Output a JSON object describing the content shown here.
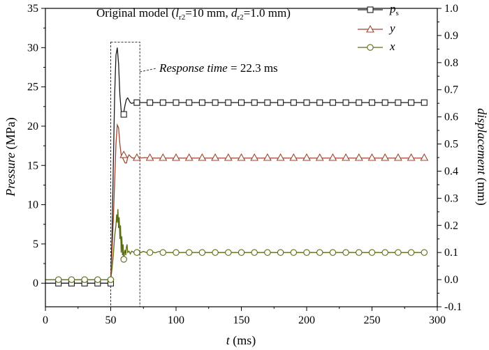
{
  "chart_data": {
    "type": "line",
    "title": {
      "main": "Original model (",
      "l": "l",
      "l_sub": "r2",
      "mid": "=10 mm, ",
      "d": "d",
      "d_sub": "r2",
      "end": "=1.0 mm)"
    },
    "x_axis": {
      "label_var": "t",
      "label_unit": " (ms)",
      "range": [
        0,
        300
      ],
      "ticks": [
        0,
        50,
        100,
        150,
        200,
        250,
        300
      ]
    },
    "y_axis_left": {
      "label_var": "Pressure",
      "label_unit": " (MPa)",
      "range": [
        -3,
        35
      ],
      "ticks": [
        0,
        5,
        10,
        15,
        20,
        25,
        30,
        35
      ]
    },
    "y_axis_right": {
      "label_var": "displacement",
      "label_unit": " (mm)",
      "range": [
        -0.1,
        1.0
      ],
      "ticks": [
        "-0.1",
        "0.0",
        "0.1",
        "0.2",
        "0.3",
        "0.4",
        "0.5",
        "0.6",
        "0.7",
        "0.8",
        "0.9",
        "1.0"
      ]
    },
    "annotation": {
      "var": "Response time",
      "rest": " = 22.3 ms",
      "box_x": [
        50,
        72.3
      ],
      "box_y": [
        -3,
        30.7
      ]
    },
    "legend": [
      {
        "var": "p",
        "sub": "s",
        "marker": "square",
        "color": "#1a1a1a"
      },
      {
        "var": "y",
        "sub": "",
        "marker": "triangle",
        "color": "#a0452f"
      },
      {
        "var": "x",
        "sub": "",
        "marker": "circle",
        "color": "#5a6b12"
      }
    ],
    "series": [
      {
        "name": "ps",
        "axis": "left",
        "color": "#1a1a1a",
        "marker": "square",
        "points": [
          [
            0,
            0
          ],
          [
            49,
            0
          ],
          [
            50,
            0.2
          ],
          [
            51,
            6
          ],
          [
            52,
            15
          ],
          [
            53,
            24
          ],
          [
            54,
            29
          ],
          [
            55,
            30
          ],
          [
            56,
            28
          ],
          [
            57,
            24
          ],
          [
            58,
            22
          ],
          [
            59,
            21.5
          ],
          [
            60,
            21.8
          ],
          [
            61,
            22.7
          ],
          [
            62,
            23.4
          ],
          [
            63,
            23.6
          ],
          [
            64,
            23.3
          ],
          [
            65,
            23.0
          ],
          [
            66,
            22.9
          ],
          [
            68,
            23.0
          ],
          [
            70,
            23.0
          ],
          [
            290,
            23.0
          ]
        ],
        "markers_x": [
          10,
          20,
          30,
          40,
          50,
          60,
          70,
          80,
          90,
          100,
          110,
          120,
          130,
          140,
          150,
          160,
          170,
          180,
          190,
          200,
          210,
          220,
          230,
          240,
          250,
          260,
          270,
          280,
          290
        ],
        "markers_y": [
          0,
          0,
          0,
          0,
          0,
          21.5,
          23,
          23,
          23,
          23,
          23,
          23,
          23,
          23,
          23,
          23,
          23,
          23,
          23,
          23,
          23,
          23,
          23,
          23,
          23,
          23,
          23,
          23,
          23
        ]
      },
      {
        "name": "y",
        "axis": "right",
        "color": "#a0452f",
        "marker": "triangle",
        "points": [
          [
            0,
            0
          ],
          [
            50,
            0
          ],
          [
            51,
            0.1
          ],
          [
            52,
            0.22
          ],
          [
            53,
            0.36
          ],
          [
            54,
            0.5
          ],
          [
            55,
            0.57
          ],
          [
            56,
            0.56
          ],
          [
            57,
            0.5
          ],
          [
            58,
            0.46
          ],
          [
            59,
            0.45
          ],
          [
            60,
            0.44
          ],
          [
            61,
            0.43
          ],
          [
            62,
            0.43
          ],
          [
            63,
            0.45
          ],
          [
            64,
            0.46
          ],
          [
            65,
            0.455
          ],
          [
            66,
            0.45
          ],
          [
            67,
            0.448
          ],
          [
            69,
            0.45
          ],
          [
            72,
            0.448
          ],
          [
            76,
            0.45
          ],
          [
            80,
            0.448
          ],
          [
            290,
            0.448
          ]
        ],
        "markers_x": [
          60,
          70,
          80,
          90,
          100,
          110,
          120,
          130,
          140,
          150,
          160,
          170,
          180,
          190,
          200,
          210,
          220,
          230,
          240,
          250,
          260,
          270,
          280,
          290
        ],
        "markers_y": [
          0.46,
          0.45,
          0.45,
          0.45,
          0.45,
          0.45,
          0.45,
          0.45,
          0.45,
          0.45,
          0.45,
          0.45,
          0.45,
          0.45,
          0.45,
          0.45,
          0.45,
          0.45,
          0.45,
          0.45,
          0.45,
          0.45,
          0.45,
          0.45
        ]
      },
      {
        "name": "x",
        "axis": "right",
        "color": "#5a6b12",
        "marker": "circle",
        "points": [
          [
            0,
            0
          ],
          [
            50,
            0
          ],
          [
            51,
            0.04
          ],
          [
            52,
            0.09
          ],
          [
            53,
            0.16
          ],
          [
            54,
            0.2
          ],
          [
            54.5,
            0.24
          ],
          [
            55,
            0.21
          ],
          [
            55.5,
            0.26
          ],
          [
            56,
            0.19
          ],
          [
            56.5,
            0.23
          ],
          [
            57,
            0.15
          ],
          [
            57.5,
            0.2
          ],
          [
            58,
            0.1
          ],
          [
            58.5,
            0.16
          ],
          [
            59,
            0.09
          ],
          [
            59.5,
            0.13
          ],
          [
            60,
            0.07
          ],
          [
            60.5,
            0.1
          ],
          [
            61,
            0.11
          ],
          [
            61.5,
            0.09
          ],
          [
            62,
            0.12
          ],
          [
            62.5,
            0.13
          ],
          [
            63,
            0.1
          ],
          [
            64,
            0.105
          ],
          [
            65,
            0.095
          ],
          [
            66,
            0.105
          ],
          [
            68,
            0.1
          ],
          [
            70,
            0.104
          ],
          [
            72,
            0.098
          ],
          [
            75,
            0.104
          ],
          [
            78,
            0.099
          ],
          [
            81,
            0.104
          ],
          [
            84,
            0.099
          ],
          [
            87,
            0.104
          ],
          [
            90,
            0.1
          ],
          [
            290,
            0.1
          ]
        ],
        "markers_x": [
          10,
          20,
          30,
          40,
          50,
          60,
          70,
          80,
          90,
          100,
          110,
          120,
          130,
          140,
          150,
          160,
          170,
          180,
          190,
          200,
          210,
          220,
          230,
          240,
          250,
          260,
          270,
          280,
          290
        ],
        "markers_y": [
          0,
          0,
          0,
          0,
          0,
          0.075,
          0.1,
          0.1,
          0.1,
          0.1,
          0.1,
          0.1,
          0.1,
          0.1,
          0.1,
          0.1,
          0.1,
          0.1,
          0.1,
          0.1,
          0.1,
          0.1,
          0.1,
          0.1,
          0.1,
          0.1,
          0.1,
          0.1,
          0.1
        ]
      }
    ]
  }
}
